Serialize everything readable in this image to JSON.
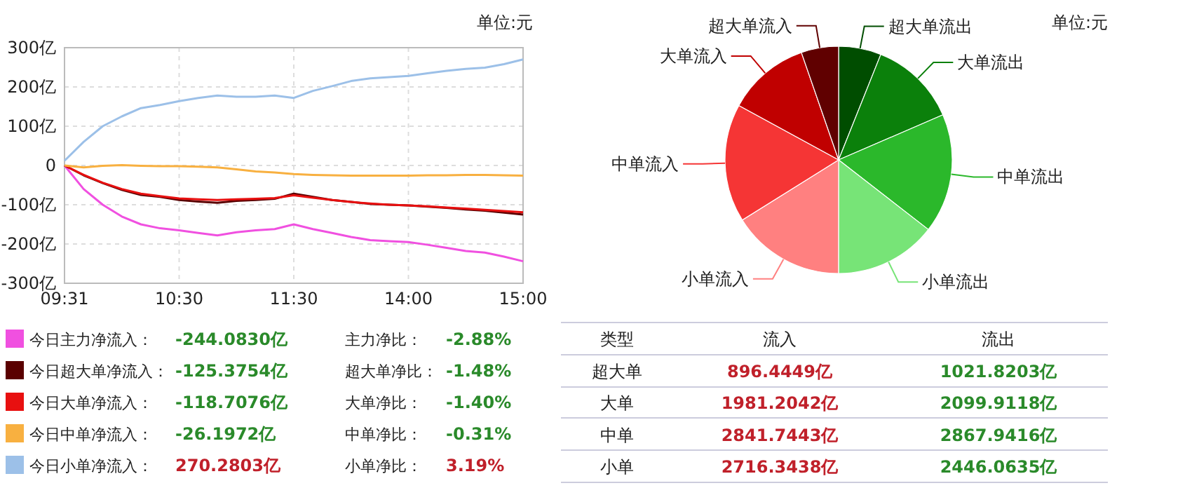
{
  "chart_data": [
    {
      "type": "line",
      "categories": [
        "09:31",
        null,
        null,
        null,
        null,
        null,
        "10:30",
        null,
        null,
        null,
        null,
        null,
        "11:30",
        null,
        null,
        null,
        null,
        null,
        "14:00",
        null,
        null,
        null,
        null,
        null,
        "15:00"
      ],
      "series": [
        {
          "name": "今日主力净流入：",
          "color": "#f050e0",
          "values": [
            0,
            -60,
            -100,
            -130,
            -150,
            -160,
            -165,
            -172,
            -178,
            -170,
            -165,
            -162,
            -150,
            -162,
            -172,
            -182,
            -190,
            -193,
            -195,
            -202,
            -210,
            -218,
            -222,
            -232,
            -244
          ]
        },
        {
          "name": "今日超大单净流入：",
          "color": "#5a0000",
          "values": [
            0,
            -25,
            -45,
            -62,
            -75,
            -80,
            -88,
            -92,
            -95,
            -90,
            -88,
            -85,
            -72,
            -80,
            -88,
            -93,
            -98,
            -100,
            -102,
            -105,
            -108,
            -112,
            -115,
            -120,
            -125
          ]
        },
        {
          "name": "今日大单净流入：",
          "color": "#e81010",
          "values": [
            0,
            -24,
            -44,
            -60,
            -72,
            -78,
            -84,
            -86,
            -88,
            -86,
            -85,
            -83,
            -76,
            -82,
            -88,
            -93,
            -97,
            -100,
            -102,
            -104,
            -107,
            -110,
            -113,
            -116,
            -119
          ]
        },
        {
          "name": "今日中单净流入：",
          "color": "#f8b040",
          "values": [
            0,
            -5,
            -1,
            1,
            -1,
            -2,
            -2,
            -3,
            -5,
            -10,
            -15,
            -18,
            -22,
            -24,
            -25,
            -26,
            -26,
            -26,
            -26,
            -25,
            -25,
            -24,
            -24,
            -25,
            -26
          ]
        },
        {
          "name": "今日小单净流入：",
          "color": "#9cc0e8",
          "values": [
            12,
            60,
            100,
            125,
            146,
            154,
            164,
            172,
            178,
            175,
            175,
            178,
            172,
            190,
            202,
            215,
            222,
            225,
            228,
            235,
            241,
            246,
            249,
            258,
            270
          ]
        }
      ],
      "ylim": [
        -300,
        300
      ],
      "yticks": [
        {
          "value": -300,
          "label": "-300亿"
        },
        {
          "value": -200,
          "label": "-200亿"
        },
        {
          "value": -100,
          "label": "-100亿"
        },
        {
          "value": 0,
          "label": "0"
        },
        {
          "value": 100,
          "label": "100亿"
        },
        {
          "value": 200,
          "label": "200亿"
        },
        {
          "value": 300,
          "label": "300亿"
        }
      ],
      "grid": true,
      "legend": "bottom",
      "annotations": [
        "单位:元",
        "-244.0830亿",
        "主力净比：",
        "-2.88%",
        "-125.3754亿",
        "超大单净比：",
        "-1.48%",
        "-118.7076亿",
        "大单净比：",
        "-1.40%",
        "-26.1972亿",
        "中单净比：",
        "-0.31%",
        "270.2803亿",
        "小单净比：",
        "3.19%"
      ]
    },
    {
      "type": "pie",
      "categories": [
        "超大单流出",
        "大单流出",
        "中单流出",
        "小单流出",
        "小单流入",
        "中单流入",
        "大单流入",
        "超大单流入"
      ],
      "values": [
        6.06,
        12.45,
        17.0,
        14.5,
        16.1,
        16.84,
        11.74,
        5.31
      ],
      "colors": [
        "#004d00",
        "#0b800b",
        "#2bb82b",
        "#77e477",
        "#ff8080",
        "#f53535",
        "#c00000",
        "#600000"
      ],
      "annotations": [
        "单位:元",
        "类型",
        "流入",
        "流出",
        "超大单",
        "896.4449亿",
        "1021.8203亿",
        "大单",
        "1981.2042亿",
        "2099.9118亿",
        "中单",
        "2841.7443亿",
        "2867.9416亿",
        "小单",
        "2716.3438亿",
        "2446.0635亿"
      ]
    }
  ]
}
